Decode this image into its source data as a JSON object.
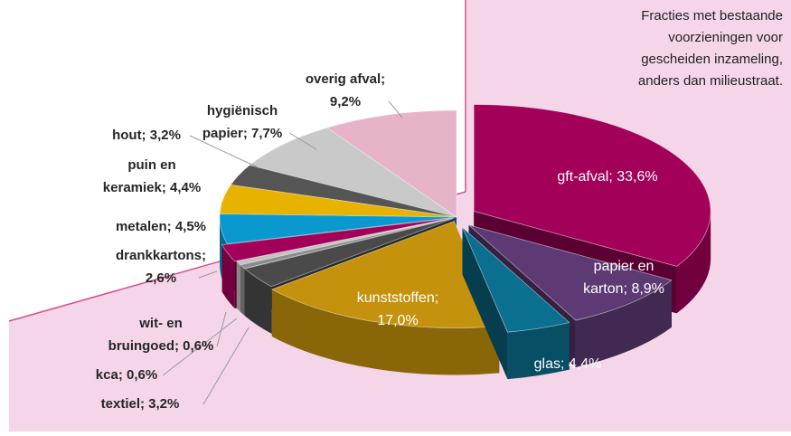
{
  "chart_data": {
    "type": "pie",
    "annotation": [
      "Fracties met bestaande",
      "voorzieningen voor",
      "gescheiden inzameling,",
      "anders dan milieustraat."
    ],
    "values": [
      33.6,
      8.9,
      4.4,
      17.0,
      3.2,
      0.6,
      0.6,
      2.6,
      4.5,
      4.4,
      3.2,
      7.7,
      9.2
    ],
    "value_labels": [
      [
        "gft-afval; 33,6%"
      ],
      [
        "papier en",
        "karton; 8,9%"
      ],
      [
        "glas; 4,4%"
      ],
      [
        "kunststoffen;",
        "17,0%"
      ],
      [
        "textiel; 3,2%"
      ],
      [
        "kca; 0,6%"
      ],
      [
        "wit- en",
        "bruingoed; 0,6%"
      ],
      [
        "drankkartons;",
        "2,6%"
      ],
      [
        "metalen; 4,5%"
      ],
      [
        "puin en",
        "keramiek; 4,4%"
      ],
      [
        "hout; 3,2%"
      ],
      [
        "hygiënisch",
        "papier; 7,7%"
      ],
      [
        "overig afval;",
        "9,2%"
      ]
    ],
    "colors": [
      "#a3005a",
      "#5e3a74",
      "#0b6f8f",
      "#c4920c",
      "#4a4a4a",
      "#8c8c8c",
      "#c2c2c2",
      "#a3005a",
      "#0a99cf",
      "#e8b200",
      "#555555",
      "#c9c9c9",
      "#e6b3c9"
    ]
  }
}
